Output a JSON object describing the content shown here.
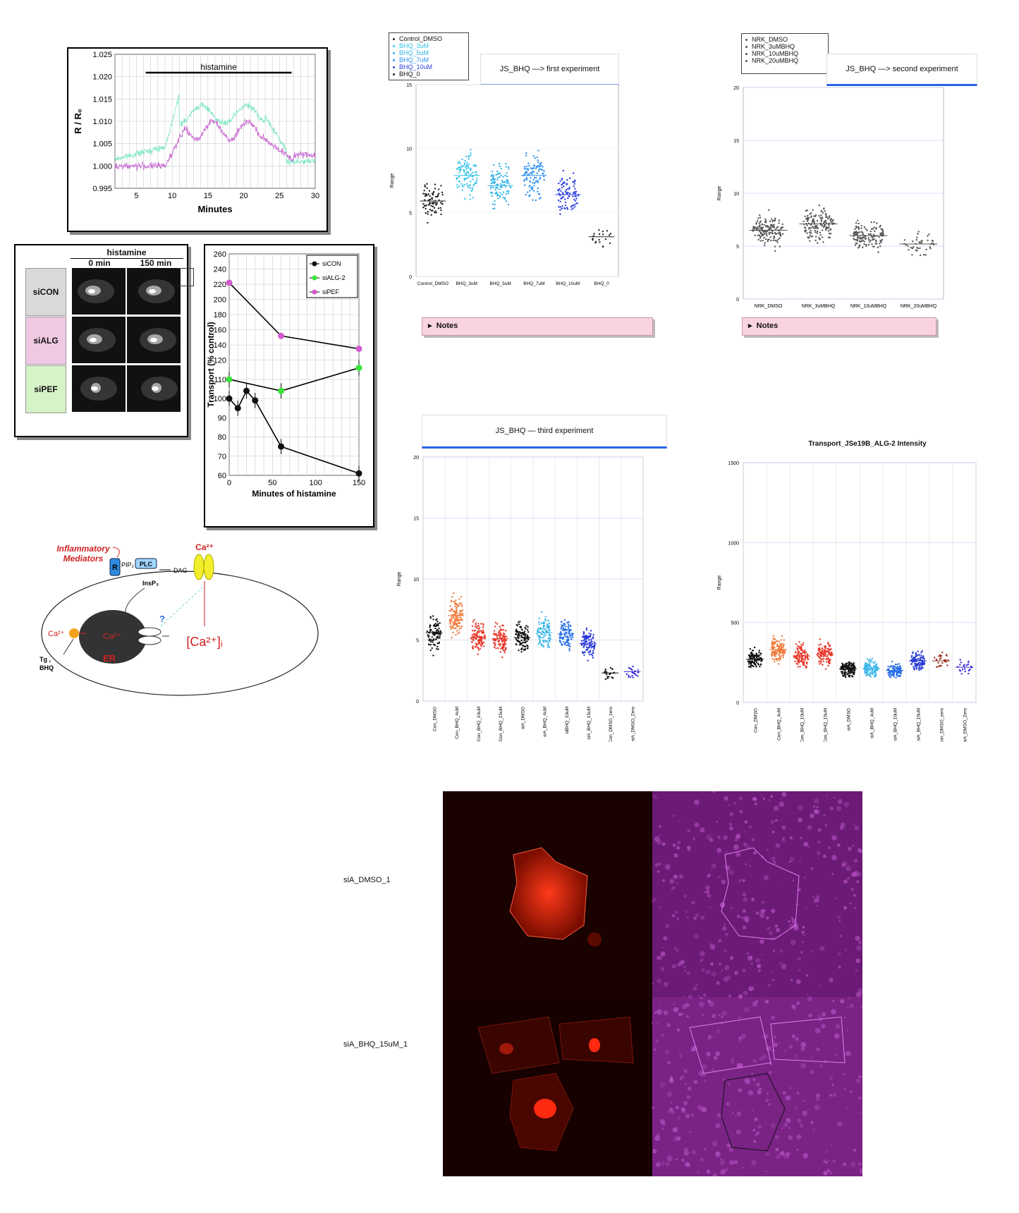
{
  "ratio_plot": {
    "ylabel": "R / R₀",
    "xlabel": "Minutes",
    "bar_label": "histamine",
    "yticks": [
      "1.025",
      "1.020",
      "1.015",
      "1.010",
      "1.005",
      "1.000",
      "0.995"
    ],
    "xticks": [
      "5",
      "10",
      "15",
      "20",
      "25",
      "30"
    ],
    "colors": {
      "series_a": "#7de6c4",
      "series_b": "#c76bd1"
    }
  },
  "micrographs": {
    "header": "histamine",
    "col_0": "0 min",
    "col_1": "150 min",
    "rows": [
      "siCON",
      "siALG",
      "siPEF"
    ],
    "row_colors": [
      "#d9d9d9",
      "#efc8e3",
      "#d6f2c7"
    ]
  },
  "chart_data": [
    {
      "type": "line",
      "title": "",
      "xlabel": "Minutes of histamine",
      "ylabel": "Transport (% control)",
      "xlim": [
        0,
        150
      ],
      "ylim": [
        60,
        260
      ],
      "xticks": [
        0,
        50,
        100,
        150
      ],
      "yticks": [
        60,
        70,
        80,
        90,
        100,
        110,
        120,
        140,
        160,
        180,
        200,
        220,
        240,
        260
      ],
      "legend": "top-right",
      "series": [
        {
          "name": "siCON",
          "color": "#111111",
          "x": [
            0,
            10,
            20,
            30,
            60,
            150
          ],
          "y": [
            100,
            95,
            104,
            99,
            75,
            61
          ]
        },
        {
          "name": "siALG-2",
          "color": "#37e637",
          "x": [
            0,
            60,
            150
          ],
          "y": [
            110,
            104,
            116
          ]
        },
        {
          "name": "siPEF",
          "color": "#d45ad0",
          "x": [
            0,
            60,
            150
          ],
          "y": [
            222,
            152,
            135
          ]
        }
      ]
    },
    {
      "type": "scatter",
      "title": "JS_BHQ —> first experiment",
      "ylabel": "Range",
      "ylim": [
        0,
        15
      ],
      "yticks": [
        0,
        5,
        10,
        15
      ],
      "categories": [
        "Control_DMSO",
        "BHQ_3uM",
        "BHQ_5uM",
        "BHQ_7uM",
        "BHQ_10uM",
        "BHQ_0"
      ],
      "medians": [
        5.9,
        7.9,
        7.1,
        7.9,
        6.4,
        3.1
      ],
      "colors": [
        "#222222",
        "#35c4ea",
        "#2fb2e6",
        "#2b8ff0",
        "#2c3fe0",
        "#222222"
      ],
      "legend": [
        "Control_DMSO",
        "BHQ_3uM",
        "BHQ_5uM",
        "BHQ_7uM",
        "BHQ_10uM",
        "BHQ_0"
      ]
    },
    {
      "type": "scatter",
      "title": "JS_BHQ —> second experiment",
      "ylabel": "Range",
      "ylim": [
        0,
        20
      ],
      "yticks": [
        0,
        5,
        10,
        15,
        20
      ],
      "categories": [
        "NRK_DMSO",
        "NRK_3uMBHQ",
        "NRK_10uMBHQ",
        "NRK_20uMBHQ"
      ],
      "medians": [
        6.5,
        7.1,
        6.0,
        5.2
      ],
      "colors": [
        "#555555",
        "#555555",
        "#555555",
        "#555555"
      ],
      "legend": [
        "NRK_DMSO",
        "NRK_3uMBHQ",
        "NRK_10uMBHQ",
        "NRK_20uMBHQ"
      ]
    },
    {
      "type": "scatter",
      "title": "JS_BHQ — third experiment",
      "ylabel": "Range",
      "ylim": [
        0,
        20
      ],
      "yticks": [
        0,
        5,
        10,
        15,
        20
      ],
      "categories": [
        "Con_DMSO",
        "Con_BHQ_4uM",
        "Con_BHQ_10uM",
        "Con_BHQ_15uM",
        "siA_DMSO",
        "siA_BHQ_4uM",
        "siBHQ_10uM",
        "siA_BHQ_15uM",
        "Con_DMSO_zero",
        "siA_DMSO_Zero"
      ],
      "medians": [
        5.6,
        7.0,
        5.2,
        5.1,
        5.2,
        5.6,
        5.5,
        4.7,
        2.3,
        2.4
      ],
      "colors": [
        "#111111",
        "#f07a3a",
        "#e83a2c",
        "#e83a2c",
        "#111111",
        "#3cb6ea",
        "#2a6fe8",
        "#2a3ad8",
        "#111111",
        "#3a2ad8"
      ]
    },
    {
      "type": "scatter",
      "title": "Transport_JSe19B_ALG-2 Intensity",
      "ylabel": "Range",
      "ylim": [
        0,
        1500
      ],
      "yticks": [
        0,
        500,
        1000,
        1500
      ],
      "categories": [
        "Con_DMSO",
        "Con_BHQ_4uM",
        "Con_BHQ_10uM",
        "Con_BHQ_15uM",
        "siA_DMSO",
        "siA_BHQ_4uM",
        "siA_BHQ_10uM",
        "siA_BHQ_15uM",
        "Con_DMSO_zero",
        "siA_DMSO_Zero"
      ],
      "medians": [
        270,
        330,
        290,
        300,
        210,
        210,
        200,
        260,
        260,
        220
      ],
      "colors": [
        "#111111",
        "#f07a3a",
        "#e83a2c",
        "#e83a2c",
        "#111111",
        "#3cb6ea",
        "#2a6fe8",
        "#2a3ad8",
        "#993322",
        "#3a2ad8"
      ]
    }
  ],
  "pathway": {
    "inflammatory": "Inflammatory\nMediators",
    "receptor": "R",
    "pip2": "PIP₂",
    "plc": "PLC",
    "dag": "DAG",
    "insp3": "InsP₃",
    "ca_top": "Ca²⁺",
    "ca_left": "Ca²⁺",
    "ca_er": "Ca²⁺",
    "er": "ER",
    "tg": "Tg ,",
    "bhq": "BHQ",
    "question": "?",
    "cai": "[Ca²⁺]ᵢ"
  },
  "notes": {
    "label": "Notes",
    "arrow": "▸"
  },
  "images": {
    "row_1": "siA_DMSO_1",
    "row_2": "siA_BHQ_15uM_1"
  }
}
